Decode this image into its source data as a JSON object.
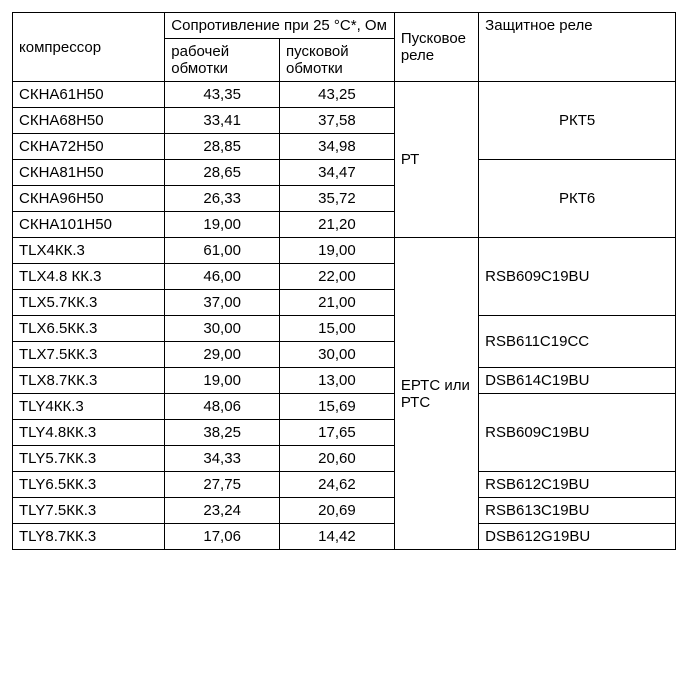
{
  "headers": {
    "compressor": "компрессор",
    "resistance": "Сопротивление при 25 °C*, Ом",
    "work_winding": "рабочей обмотки",
    "start_winding": "пусковой обмотки",
    "start_relay": "Пусковое реле",
    "protect_relay": "Защитное реле"
  },
  "start_relay": {
    "pt": "РТ",
    "eptc": "ЕРТС или РТС"
  },
  "protect": {
    "rkt5": "РКТ5",
    "rkt6": "РКТ6",
    "rsb609": "RSB609C19BU",
    "rsb611": "RSB611C19CC",
    "dsb614": "DSB614C19BU",
    "rsb609b": "RSB609C19BU",
    "rsb612": "RSB612C19BU",
    "rsb613": "RSB613C19BU",
    "dsb612": "DSB612G19BU"
  },
  "rows": {
    "r0": {
      "comp": "СКНА61Н50",
      "work": "43,35",
      "start": "43,25"
    },
    "r1": {
      "comp": "СКНА68Н50",
      "work": "33,41",
      "start": "37,58"
    },
    "r2": {
      "comp": "СКНА72Н50",
      "work": "28,85",
      "start": "34,98"
    },
    "r3": {
      "comp": "СКНА81Н50",
      "work": "28,65",
      "start": "34,47"
    },
    "r4": {
      "comp": "СКНА96Н50",
      "work": "26,33",
      "start": "35,72"
    },
    "r5": {
      "comp": "СКНА101Н50",
      "work": "19,00",
      "start": "21,20"
    },
    "r6": {
      "comp": "TLX4КК.3",
      "work": "61,00",
      "start": "19,00"
    },
    "r7": {
      "comp": "TLX4.8 КК.3",
      "work": "46,00",
      "start": "22,00"
    },
    "r8": {
      "comp": "TLX5.7КК.3",
      "work": "37,00",
      "start": "21,00"
    },
    "r9": {
      "comp": "TLX6.5КК.3",
      "work": "30,00",
      "start": "15,00"
    },
    "r10": {
      "comp": "TLX7.5КК.3",
      "work": "29,00",
      "start": "30,00"
    },
    "r11": {
      "comp": "TLX8.7КК.3",
      "work": "19,00",
      "start": "13,00"
    },
    "r12": {
      "comp": "TLY4КК.3",
      "work": "48,06",
      "start": "15,69"
    },
    "r13": {
      "comp": "TLY4.8КК.3",
      "work": "38,25",
      "start": "17,65"
    },
    "r14": {
      "comp": "TLY5.7КК.3",
      "work": "34,33",
      "start": "20,60"
    },
    "r15": {
      "comp": "TLY6.5КК.3",
      "work": "27,75",
      "start": "24,62"
    },
    "r16": {
      "comp": "TLY7.5КК.3",
      "work": "23,24",
      "start": "20,69"
    },
    "r17": {
      "comp": "TLY8.7КК.3",
      "work": "17,06",
      "start": "14,42"
    }
  }
}
